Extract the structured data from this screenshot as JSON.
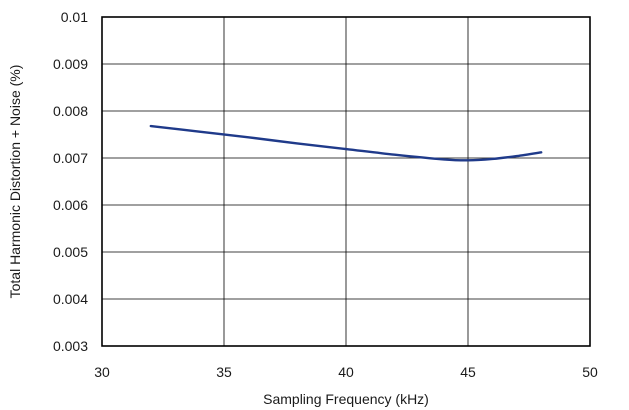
{
  "chart_data": {
    "type": "line",
    "title": "",
    "xlabel": "Sampling Frequency (kHz)",
    "ylabel": "Total Harmonic Distortion + Noise (%)",
    "xlim": [
      30,
      50
    ],
    "ylim": [
      0.003,
      0.01
    ],
    "x_ticks": [
      30,
      35,
      40,
      45,
      50
    ],
    "x_tick_labels": [
      "30",
      "35",
      "40",
      "45",
      "50"
    ],
    "y_ticks": [
      0.003,
      0.004,
      0.005,
      0.006,
      0.007,
      0.008,
      0.009,
      0.01
    ],
    "y_tick_labels": [
      "0.003",
      "0.004",
      "0.005",
      "0.006",
      "0.007",
      "0.008",
      "0.009",
      "0.01"
    ],
    "grid": true,
    "legend": "none",
    "series": [
      {
        "color": "#1f3a8a",
        "x": [
          32,
          34,
          36,
          38,
          40,
          42,
          44,
          45,
          46,
          47,
          48
        ],
        "y": [
          0.00768,
          0.00756,
          0.00744,
          0.00731,
          0.00719,
          0.00707,
          0.00697,
          0.00695,
          0.00698,
          0.00704,
          0.00712
        ]
      }
    ]
  }
}
